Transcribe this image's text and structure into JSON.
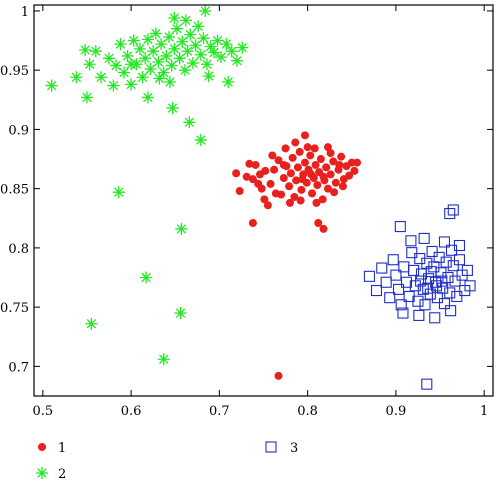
{
  "chart_data": {
    "type": "scatter",
    "title": "",
    "xlabel": "",
    "ylabel": "",
    "xlim": [
      0.49,
      1.01
    ],
    "ylim": [
      0.675,
      1.005
    ],
    "grid": false,
    "legend_position": "bottom-left",
    "x_ticks": [
      "0.5",
      "0.6",
      "0.7",
      "0.8",
      "0.9",
      "1"
    ],
    "y_ticks": [
      "0.7",
      "0.75",
      "0.8",
      "0.85",
      "0.9",
      "0.95",
      "1"
    ],
    "x_tick_values": [
      0.5,
      0.6,
      0.7,
      0.8,
      0.9,
      1.0
    ],
    "y_tick_values": [
      0.7,
      0.75,
      0.8,
      0.85,
      0.9,
      0.95,
      1.0
    ],
    "series": [
      {
        "name": "1",
        "marker": "filled-circle",
        "color": "#e8201e",
        "points": [
          [
            0.767,
            0.692
          ],
          [
            0.738,
            0.821
          ],
          [
            0.812,
            0.821
          ],
          [
            0.818,
            0.816
          ],
          [
            0.797,
            0.895
          ],
          [
            0.775,
            0.884
          ],
          [
            0.823,
            0.885
          ],
          [
            0.719,
            0.863
          ],
          [
            0.731,
            0.86
          ],
          [
            0.734,
            0.871
          ],
          [
            0.723,
            0.848
          ],
          [
            0.741,
            0.87
          ],
          [
            0.746,
            0.862
          ],
          [
            0.748,
            0.85
          ],
          [
            0.751,
            0.841
          ],
          [
            0.758,
            0.854
          ],
          [
            0.762,
            0.866
          ],
          [
            0.767,
            0.874
          ],
          [
            0.77,
            0.845
          ],
          [
            0.773,
            0.859
          ],
          [
            0.776,
            0.869
          ],
          [
            0.779,
            0.852
          ],
          [
            0.781,
            0.863
          ],
          [
            0.783,
            0.876
          ],
          [
            0.785,
            0.843
          ],
          [
            0.787,
            0.857
          ],
          [
            0.789,
            0.868
          ],
          [
            0.791,
            0.881
          ],
          [
            0.793,
            0.849
          ],
          [
            0.795,
            0.862
          ],
          [
            0.797,
            0.872
          ],
          [
            0.799,
            0.855
          ],
          [
            0.801,
            0.866
          ],
          [
            0.803,
            0.878
          ],
          [
            0.805,
            0.846
          ],
          [
            0.807,
            0.859
          ],
          [
            0.809,
            0.87
          ],
          [
            0.811,
            0.853
          ],
          [
            0.813,
            0.864
          ],
          [
            0.815,
            0.875
          ],
          [
            0.817,
            0.841
          ],
          [
            0.819,
            0.857
          ],
          [
            0.821,
            0.868
          ],
          [
            0.823,
            0.85
          ],
          [
            0.826,
            0.862
          ],
          [
            0.829,
            0.873
          ],
          [
            0.832,
            0.855
          ],
          [
            0.835,
            0.866
          ],
          [
            0.838,
            0.877
          ],
          [
            0.841,
            0.858
          ],
          [
            0.844,
            0.869
          ],
          [
            0.847,
            0.861
          ],
          [
            0.85,
            0.872
          ],
          [
            0.853,
            0.865
          ],
          [
            0.856,
            0.872
          ],
          [
            0.76,
            0.878
          ],
          [
            0.755,
            0.836
          ],
          [
            0.78,
            0.838
          ],
          [
            0.792,
            0.84
          ],
          [
            0.81,
            0.838
          ],
          [
            0.8,
            0.885
          ],
          [
            0.786,
            0.889
          ],
          [
            0.808,
            0.884
          ],
          [
            0.826,
            0.88
          ],
          [
            0.764,
            0.846
          ],
          [
            0.773,
            0.87
          ],
          [
            0.794,
            0.858
          ],
          [
            0.804,
            0.862
          ],
          [
            0.818,
            0.86
          ],
          [
            0.83,
            0.847
          ],
          [
            0.84,
            0.852
          ],
          [
            0.836,
            0.87
          ],
          [
            0.752,
            0.865
          ],
          [
            0.744,
            0.854
          ],
          [
            0.738,
            0.858
          ]
        ]
      },
      {
        "name": "2",
        "marker": "asterisk",
        "color": "#22e822",
        "points": [
          [
            0.51,
            0.937
          ],
          [
            0.538,
            0.944
          ],
          [
            0.55,
            0.927
          ],
          [
            0.548,
            0.967
          ],
          [
            0.553,
            0.955
          ],
          [
            0.56,
            0.966
          ],
          [
            0.566,
            0.944
          ],
          [
            0.575,
            0.96
          ],
          [
            0.58,
            0.937
          ],
          [
            0.583,
            0.954
          ],
          [
            0.588,
            0.972
          ],
          [
            0.592,
            0.948
          ],
          [
            0.596,
            0.962
          ],
          [
            0.6,
            0.938
          ],
          [
            0.603,
            0.975
          ],
          [
            0.606,
            0.955
          ],
          [
            0.61,
            0.968
          ],
          [
            0.613,
            0.944
          ],
          [
            0.616,
            0.96
          ],
          [
            0.619,
            0.976
          ],
          [
            0.622,
            0.951
          ],
          [
            0.625,
            0.966
          ],
          [
            0.628,
            0.981
          ],
          [
            0.631,
            0.957
          ],
          [
            0.634,
            0.972
          ],
          [
            0.637,
            0.948
          ],
          [
            0.64,
            0.962
          ],
          [
            0.643,
            0.978
          ],
          [
            0.646,
            0.954
          ],
          [
            0.649,
            0.968
          ],
          [
            0.652,
            0.985
          ],
          [
            0.655,
            0.96
          ],
          [
            0.658,
            0.974
          ],
          [
            0.661,
            0.95
          ],
          [
            0.664,
            0.966
          ],
          [
            0.667,
            0.98
          ],
          [
            0.67,
            0.956
          ],
          [
            0.673,
            0.971
          ],
          [
            0.676,
            0.987
          ],
          [
            0.679,
            0.963
          ],
          [
            0.682,
            0.977
          ],
          [
            0.686,
            0.955
          ],
          [
            0.69,
            0.97
          ],
          [
            0.694,
            0.965
          ],
          [
            0.698,
            0.975
          ],
          [
            0.702,
            0.961
          ],
          [
            0.708,
            0.972
          ],
          [
            0.714,
            0.966
          ],
          [
            0.72,
            0.958
          ],
          [
            0.726,
            0.969
          ],
          [
            0.649,
            0.994
          ],
          [
            0.662,
            0.992
          ],
          [
            0.684,
            1.0
          ],
          [
            0.619,
            0.927
          ],
          [
            0.647,
            0.918
          ],
          [
            0.666,
            0.906
          ],
          [
            0.679,
            0.891
          ],
          [
            0.586,
            0.847
          ],
          [
            0.657,
            0.816
          ],
          [
            0.617,
            0.775
          ],
          [
            0.555,
            0.736
          ],
          [
            0.656,
            0.745
          ],
          [
            0.637,
            0.706
          ],
          [
            0.71,
            0.94
          ],
          [
            0.688,
            0.945
          ],
          [
            0.6,
            0.955
          ],
          [
            0.632,
            0.943
          ],
          [
            0.644,
            0.94
          ]
        ]
      },
      {
        "name": "3",
        "marker": "open-square",
        "color": "#1f2ec8",
        "points": [
          [
            0.935,
            0.685
          ],
          [
            0.965,
            0.832
          ],
          [
            0.961,
            0.829
          ],
          [
            0.905,
            0.818
          ],
          [
            0.87,
            0.776
          ],
          [
            0.878,
            0.764
          ],
          [
            0.884,
            0.783
          ],
          [
            0.889,
            0.771
          ],
          [
            0.893,
            0.758
          ],
          [
            0.897,
            0.79
          ],
          [
            0.9,
            0.777
          ],
          [
            0.903,
            0.765
          ],
          [
            0.906,
            0.752
          ],
          [
            0.909,
            0.784
          ],
          [
            0.912,
            0.771
          ],
          [
            0.915,
            0.759
          ],
          [
            0.918,
            0.796
          ],
          [
            0.92,
            0.781
          ],
          [
            0.922,
            0.768
          ],
          [
            0.925,
            0.755
          ],
          [
            0.927,
            0.791
          ],
          [
            0.929,
            0.778
          ],
          [
            0.931,
            0.765
          ],
          [
            0.933,
            0.752
          ],
          [
            0.935,
            0.787
          ],
          [
            0.937,
            0.774
          ],
          [
            0.939,
            0.761
          ],
          [
            0.941,
            0.797
          ],
          [
            0.943,
            0.784
          ],
          [
            0.945,
            0.771
          ],
          [
            0.947,
            0.758
          ],
          [
            0.949,
            0.792
          ],
          [
            0.951,
            0.779
          ],
          [
            0.953,
            0.766
          ],
          [
            0.955,
            0.753
          ],
          [
            0.957,
            0.788
          ],
          [
            0.959,
            0.775
          ],
          [
            0.961,
            0.762
          ],
          [
            0.963,
            0.798
          ],
          [
            0.965,
            0.785
          ],
          [
            0.967,
            0.772
          ],
          [
            0.969,
            0.759
          ],
          [
            0.972,
            0.79
          ],
          [
            0.975,
            0.777
          ],
          [
            0.978,
            0.764
          ],
          [
            0.981,
            0.781
          ],
          [
            0.984,
            0.768
          ],
          [
            0.917,
            0.806
          ],
          [
            0.932,
            0.808
          ],
          [
            0.955,
            0.805
          ],
          [
            0.972,
            0.802
          ],
          [
            0.908,
            0.745
          ],
          [
            0.926,
            0.743
          ],
          [
            0.944,
            0.741
          ],
          [
            0.962,
            0.747
          ],
          [
            0.928,
            0.772
          ],
          [
            0.94,
            0.78
          ],
          [
            0.946,
            0.768
          ],
          [
            0.952,
            0.772
          ],
          [
            0.936,
            0.766
          ]
        ]
      }
    ],
    "legend": [
      {
        "label": "1",
        "marker": "filled-circle",
        "color": "#e8201e"
      },
      {
        "label": "2",
        "marker": "asterisk",
        "color": "#22e822"
      },
      {
        "label": "3",
        "marker": "open-square",
        "color": "#1f2ec8"
      }
    ]
  }
}
